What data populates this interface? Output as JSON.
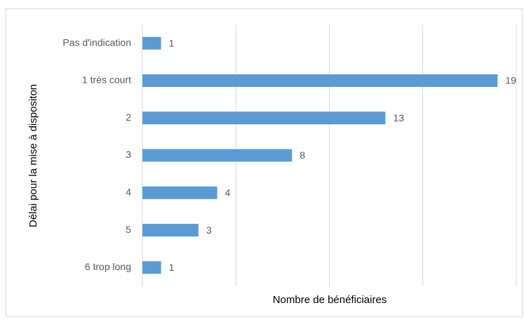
{
  "chart_data": {
    "type": "hbar",
    "categories": [
      "Pas d'indication",
      "1 très court",
      "2",
      "3",
      "4",
      "5",
      "6 trop long"
    ],
    "values": [
      1,
      19,
      13,
      8,
      4,
      3,
      1
    ],
    "color": "#5b9bd5",
    "xlabel": "Nombre de bénéficiaires",
    "ylabel": "Délai pour la mise à dispositon",
    "xlim": [
      0,
      20
    ],
    "xticks": [
      0,
      5,
      10,
      15,
      20
    ],
    "grid": true
  }
}
